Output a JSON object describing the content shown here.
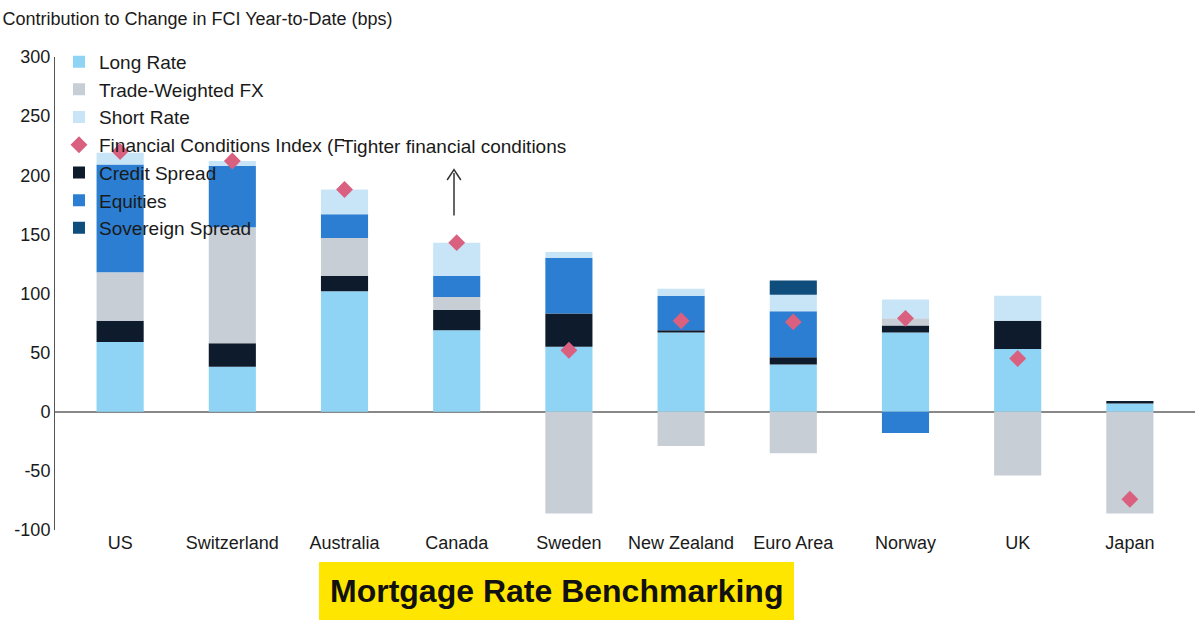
{
  "chart_data": {
    "type": "bar",
    "title": "Contribution to Change in FCI Year-to-Date (bps)",
    "annotations": [
      "Tighter financial conditions"
    ],
    "caption": "Mortgage Rate Benchmarking",
    "categories": [
      "US",
      "Switzerland",
      "Australia",
      "Canada",
      "Sweden",
      "New Zealand",
      "Euro Area",
      "Norway",
      "UK",
      "Japan"
    ],
    "series": [
      {
        "name": "Long Rate",
        "type": "bar",
        "color": "#8fd4f4",
        "values": [
          59,
          38,
          102,
          69,
          55,
          67,
          40,
          67,
          53,
          7
        ]
      },
      {
        "name": "Credit Spread",
        "type": "bar",
        "color": "#0e1b2c",
        "values": [
          18,
          20,
          13,
          17,
          28,
          2,
          6,
          6,
          24,
          2
        ]
      },
      {
        "name": "Trade-Weighted FX",
        "type": "bar",
        "color": "#c7ced6",
        "values": [
          41,
          98,
          32,
          11,
          -86,
          -29,
          -35,
          6,
          -54,
          -86
        ]
      },
      {
        "name": "Equities",
        "type": "bar",
        "color": "#2b7ed2",
        "values": [
          91,
          52,
          20,
          18,
          47,
          29,
          39,
          -18,
          0,
          0
        ]
      },
      {
        "name": "Short Rate",
        "type": "bar",
        "color": "#c8e5f8",
        "values": [
          10,
          4,
          21,
          28,
          5,
          6,
          14,
          16,
          21,
          0
        ]
      },
      {
        "name": "Sovereign Spread",
        "type": "bar",
        "color": "#0f4d7d",
        "values": [
          0,
          0,
          0,
          0,
          0,
          0,
          12,
          0,
          0,
          0
        ]
      },
      {
        "name": "Financial Conditions Index (FCI)",
        "type": "scatter",
        "marker": "diamond",
        "color": "#d9607f",
        "values": [
          220,
          212,
          188,
          143,
          52,
          77,
          76,
          79,
          45,
          -74
        ]
      }
    ],
    "stacked": true,
    "ylim": [
      -100,
      300
    ],
    "yticks": [
      -100,
      -50,
      0,
      50,
      100,
      150,
      200,
      250,
      300
    ],
    "grid": false,
    "legend": "top-left"
  }
}
